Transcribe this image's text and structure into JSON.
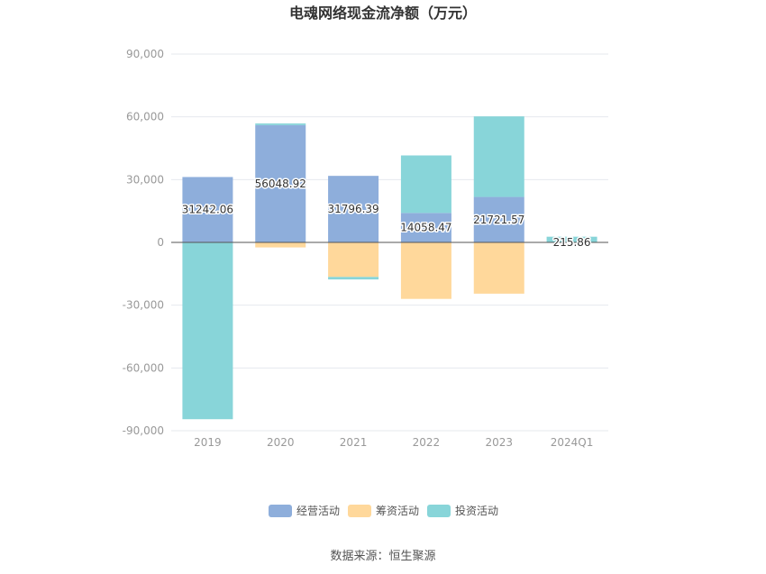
{
  "chart_data": {
    "type": "bar",
    "title": "电魂网络现金流净额（万元）",
    "categories": [
      "2019",
      "2020",
      "2021",
      "2022",
      "2023",
      "2024Q1"
    ],
    "ylim": [
      -90000,
      90000
    ],
    "yticks": [
      "90,000",
      "60,000",
      "30,000",
      "0",
      "-30,000",
      "-60,000",
      "-90,000"
    ],
    "ytick_values": [
      90000,
      60000,
      30000,
      0,
      -30000,
      -60000,
      -90000
    ],
    "grid": true,
    "stacked": true,
    "legend_position": "bottom",
    "series": [
      {
        "name": "经营活动",
        "color": "#8eaedb",
        "values": [
          31242.06,
          56048.92,
          31796.39,
          14058.47,
          21721.57,
          215.86
        ],
        "labels": [
          "31242.06",
          "56048.92",
          "31796.39",
          "14058.47",
          "21721.57",
          "215.86"
        ]
      },
      {
        "name": "筹资活动",
        "color": "#ffd89b",
        "values": [
          0,
          -2400,
          -16500,
          -27000,
          -24500,
          -50
        ]
      },
      {
        "name": "投资活动",
        "color": "#88d5d9",
        "values": [
          -84500,
          800,
          -1200,
          27500,
          38500,
          2500
        ]
      }
    ],
    "source": "数据来源：恒生聚源"
  }
}
